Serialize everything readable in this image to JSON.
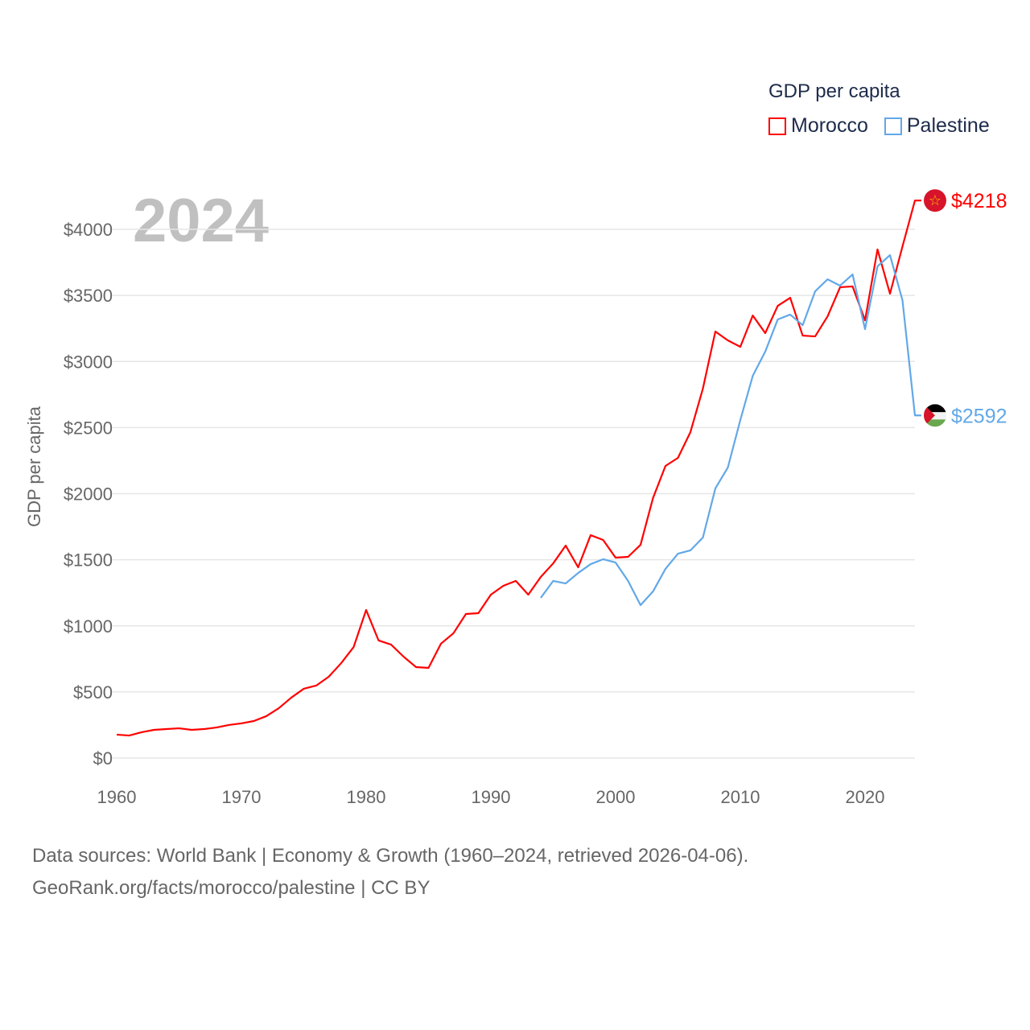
{
  "chart_data": {
    "type": "line",
    "title": "GDP per capita",
    "year_label": "2024",
    "ylabel": "GDP per capita",
    "xlabel": "",
    "xlim": [
      1960,
      2024
    ],
    "ylim": [
      0,
      4000
    ],
    "x_ticks": [
      "1960",
      "1970",
      "1980",
      "1990",
      "2000",
      "2010",
      "2020"
    ],
    "y_ticks": [
      "$0",
      "$500",
      "$1000",
      "$1500",
      "$2000",
      "$2500",
      "$3000",
      "$3500",
      "$4000"
    ],
    "grid": true,
    "legend_placement": "top-right",
    "series": [
      {
        "name": "Morocco",
        "color": "#ff0000",
        "end_label": "$4218",
        "start_year": 1960,
        "values": [
          177,
          170,
          195,
          213,
          219,
          225,
          213,
          219,
          231,
          250,
          262,
          280,
          317,
          377,
          457,
          524,
          548,
          615,
          718,
          840,
          1120,
          889,
          858,
          767,
          688,
          682,
          865,
          944,
          1090,
          1096,
          1236,
          1303,
          1340,
          1236,
          1370,
          1473,
          1607,
          1443,
          1686,
          1650,
          1516,
          1522,
          1613,
          1967,
          2210,
          2271,
          2466,
          2795,
          3227,
          3160,
          3111,
          3348,
          3215,
          3421,
          3482,
          3196,
          3190,
          3342,
          3562,
          3568,
          3312,
          3848,
          3513,
          3870,
          4218
        ]
      },
      {
        "name": "Palestine",
        "color": "#62a8e8",
        "end_label": "$2592",
        "start_year": 1994,
        "values": [
          1212,
          1340,
          1321,
          1400,
          1467,
          1504,
          1479,
          1340,
          1157,
          1260,
          1431,
          1546,
          1571,
          1668,
          2040,
          2198,
          2557,
          2892,
          3075,
          3318,
          3355,
          3275,
          3531,
          3622,
          3574,
          3659,
          3245,
          3720,
          3805,
          3464,
          2592
        ]
      }
    ]
  },
  "footer": {
    "line1": "Data sources: World Bank | Economy & Growth (1960–2024, retrieved 2026-04-06).",
    "line2": "GeoRank.org/facts/morocco/palestine | CC BY"
  }
}
